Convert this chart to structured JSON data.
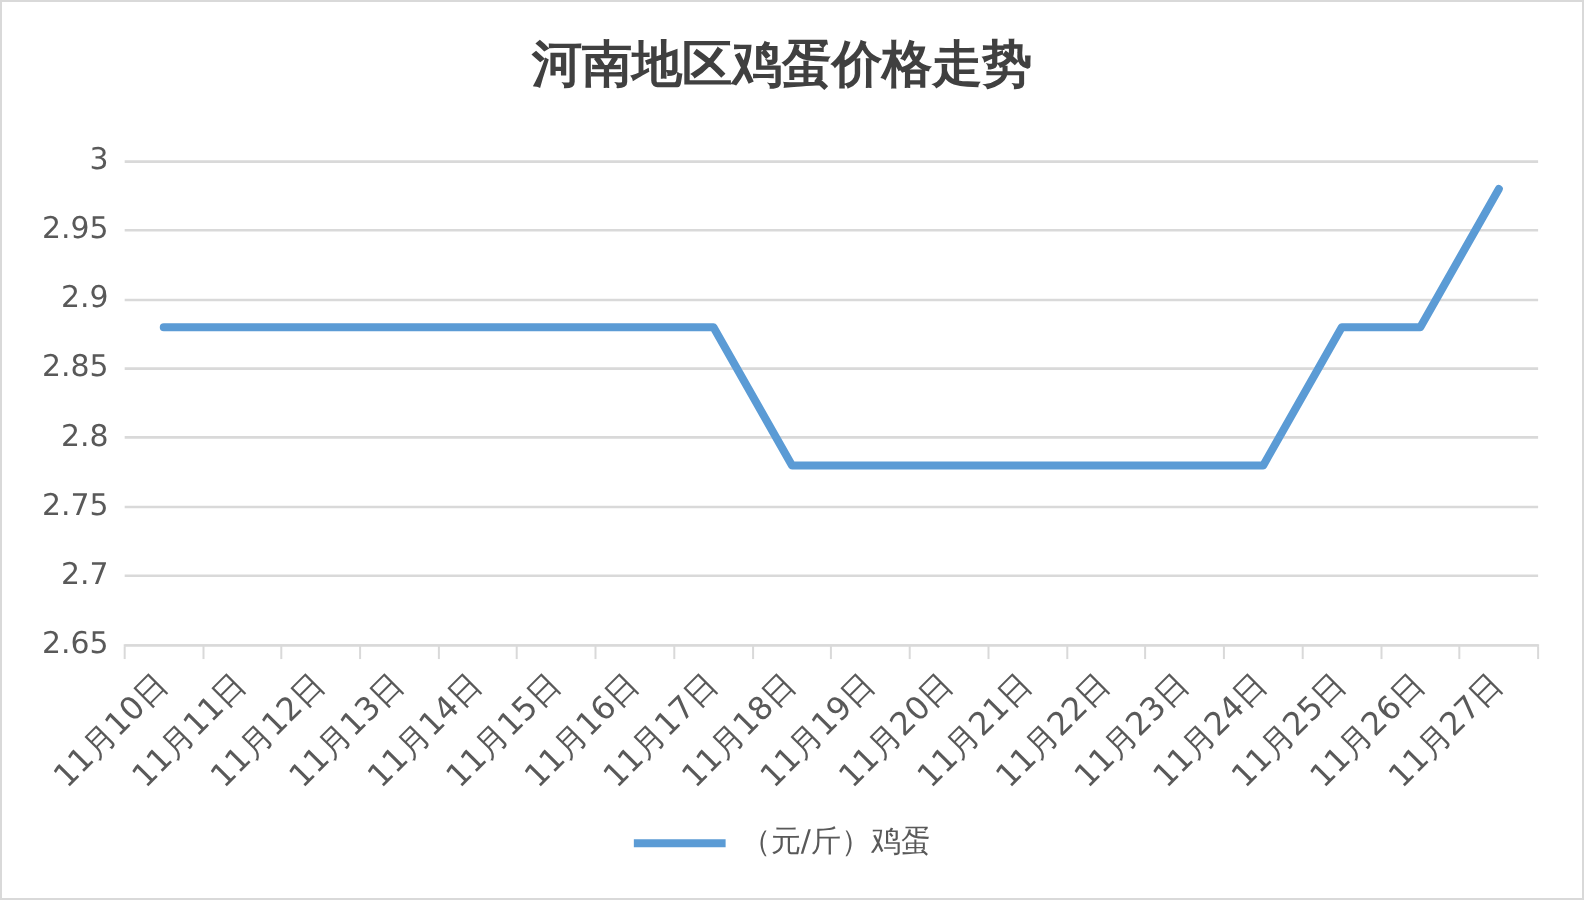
{
  "chart_data": {
    "type": "line",
    "title": "河南地区鸡蛋价格走势",
    "categories": [
      "11月10日",
      "11月11日",
      "11月12日",
      "11月13日",
      "11月14日",
      "11月15日",
      "11月16日",
      "11月17日",
      "11月18日",
      "11月19日",
      "11月20日",
      "11月21日",
      "11月22日",
      "11月23日",
      "11月24日",
      "11月25日",
      "11月26日",
      "11月27日"
    ],
    "series": [
      {
        "name": "（元/斤）鸡蛋",
        "color": "#5b9bd5",
        "values": [
          2.88,
          2.88,
          2.88,
          2.88,
          2.88,
          2.88,
          2.88,
          2.88,
          2.78,
          2.78,
          2.78,
          2.78,
          2.78,
          2.78,
          2.78,
          2.88,
          2.88,
          2.98
        ]
      }
    ],
    "ylim": [
      2.65,
      3
    ],
    "yticks": [
      2.65,
      2.7,
      2.75,
      2.8,
      2.85,
      2.9,
      2.95,
      3
    ],
    "grid": "y",
    "legend": "bottom",
    "marker": "none",
    "line_style": "solid"
  }
}
